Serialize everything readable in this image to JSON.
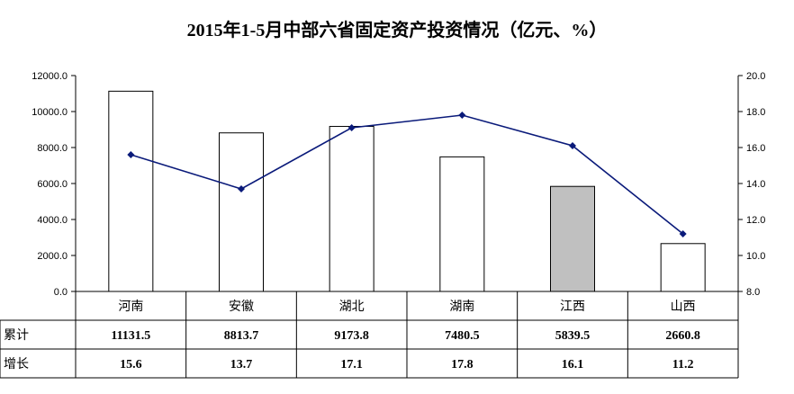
{
  "chart_data": {
    "type": "bar",
    "title": "2015年1-5月中部六省固定资产投资情况（亿元、%）",
    "categories": [
      "河南",
      "安徽",
      "湖北",
      "湖南",
      "江西",
      "山西"
    ],
    "series": [
      {
        "name": "累计",
        "type": "bar",
        "axis": "left",
        "values": [
          11131.5,
          8813.7,
          9173.8,
          7480.5,
          5839.5,
          2660.8
        ],
        "labels": [
          "11131.5",
          "8813.7",
          "9173.8",
          "7480.5",
          "5839.5",
          "2660.8"
        ]
      },
      {
        "name": "增长",
        "type": "line",
        "axis": "right",
        "values": [
          15.6,
          13.7,
          17.1,
          17.8,
          16.1,
          11.2
        ],
        "labels": [
          "15.6",
          "13.7",
          "17.1",
          "17.8",
          "16.1",
          "11.2"
        ]
      }
    ],
    "ylim": [
      0,
      12000
    ],
    "y_ticks": [
      "0.0",
      "2000.0",
      "4000.0",
      "6000.0",
      "8000.0",
      "10000.0",
      "12000.0"
    ],
    "y2lim": [
      8,
      20
    ],
    "y2_ticks": [
      "8.0",
      "10.0",
      "12.0",
      "14.0",
      "16.0",
      "18.0",
      "20.0"
    ],
    "highlight_category": "江西",
    "grid": false,
    "data_table": true,
    "colors": {
      "bar_fill": "#ffffff",
      "bar_highlight": "#c0c0c0",
      "bar_stroke": "#000000",
      "line": "#0a1a7a"
    }
  }
}
